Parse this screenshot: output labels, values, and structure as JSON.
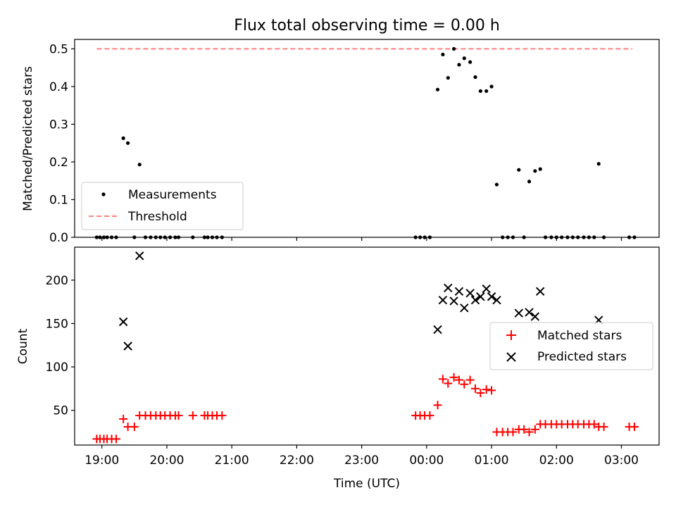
{
  "chart_data": [
    {
      "type": "scatter",
      "title": "Flux total observing time = 0.00 h",
      "ylabel": "Matched/Predicted stars",
      "xlabel": "",
      "xlim": [
        18.58,
        27.58
      ],
      "ylim": [
        0,
        0.525
      ],
      "yticks": [
        "0.0",
        "0.1",
        "0.2",
        "0.3",
        "0.4",
        "0.5"
      ],
      "legend": {
        "position": "lower-left",
        "entries": [
          "Measurements",
          "Threshold"
        ]
      },
      "colors": {
        "measurements": "#000000",
        "threshold": "#ff7f7f"
      },
      "threshold": {
        "name": "Threshold",
        "value": 0.5,
        "x_start": 18.92,
        "x_end": 27.17
      },
      "series": [
        {
          "name": "Measurements",
          "points": [
            [
              18.92,
              0
            ],
            [
              18.97,
              0
            ],
            [
              19.03,
              0
            ],
            [
              19.08,
              0
            ],
            [
              19.15,
              0
            ],
            [
              19.22,
              0
            ],
            [
              19.33,
              0.263
            ],
            [
              19.4,
              0.25
            ],
            [
              19.58,
              0.193
            ],
            [
              19.5,
              0
            ],
            [
              19.67,
              0
            ],
            [
              19.75,
              0
            ],
            [
              19.83,
              0
            ],
            [
              19.9,
              0
            ],
            [
              19.97,
              0
            ],
            [
              20.05,
              0
            ],
            [
              20.13,
              0
            ],
            [
              20.18,
              0
            ],
            [
              20.4,
              0
            ],
            [
              20.58,
              0
            ],
            [
              20.63,
              0
            ],
            [
              20.7,
              0
            ],
            [
              20.77,
              0
            ],
            [
              20.85,
              0
            ],
            [
              23.83,
              0
            ],
            [
              23.9,
              0
            ],
            [
              23.97,
              0
            ],
            [
              24.05,
              0
            ],
            [
              24.17,
              0.392
            ],
            [
              24.25,
              0.485
            ],
            [
              24.33,
              0.423
            ],
            [
              24.42,
              0.5
            ],
            [
              24.5,
              0.458
            ],
            [
              24.58,
              0.475
            ],
            [
              24.67,
              0.465
            ],
            [
              24.75,
              0.425
            ],
            [
              24.83,
              0.388
            ],
            [
              24.92,
              0.388
            ],
            [
              25.0,
              0.4
            ],
            [
              25.08,
              0.14
            ],
            [
              25.42,
              0.179
            ],
            [
              25.58,
              0.148
            ],
            [
              25.67,
              0.176
            ],
            [
              25.75,
              0.181
            ],
            [
              26.65,
              0.195
            ],
            [
              25.17,
              0
            ],
            [
              25.25,
              0
            ],
            [
              25.33,
              0
            ],
            [
              25.5,
              0
            ],
            [
              25.83,
              0
            ],
            [
              25.92,
              0
            ],
            [
              26.0,
              0
            ],
            [
              26.08,
              0
            ],
            [
              26.17,
              0
            ],
            [
              26.25,
              0
            ],
            [
              26.33,
              0
            ],
            [
              26.42,
              0
            ],
            [
              26.5,
              0
            ],
            [
              26.58,
              0
            ],
            [
              26.73,
              0
            ],
            [
              27.12,
              0
            ],
            [
              27.2,
              0
            ]
          ]
        }
      ]
    },
    {
      "type": "scatter",
      "title": "",
      "xlabel": "Time (UTC)",
      "ylabel": "Count",
      "xlim": [
        18.58,
        27.58
      ],
      "ylim": [
        10,
        238
      ],
      "yticks": [
        "50",
        "100",
        "150",
        "200"
      ],
      "xticks": [
        "19:00",
        "20:00",
        "21:00",
        "22:00",
        "23:00",
        "00:00",
        "01:00",
        "02:00",
        "03:00"
      ],
      "legend": {
        "position": "center-right",
        "entries": [
          "Matched stars",
          "Predicted stars"
        ]
      },
      "colors": {
        "matched": "#ff0000",
        "predicted": "#000000"
      },
      "series": [
        {
          "name": "Matched stars",
          "points": [
            [
              18.92,
              17
            ],
            [
              18.97,
              17
            ],
            [
              19.03,
              17
            ],
            [
              19.08,
              17
            ],
            [
              19.15,
              17
            ],
            [
              19.22,
              17
            ],
            [
              19.33,
              40
            ],
            [
              19.4,
              31
            ],
            [
              19.5,
              31
            ],
            [
              19.58,
              44
            ],
            [
              19.67,
              44
            ],
            [
              19.75,
              44
            ],
            [
              19.83,
              44
            ],
            [
              19.9,
              44
            ],
            [
              19.97,
              44
            ],
            [
              20.05,
              44
            ],
            [
              20.13,
              44
            ],
            [
              20.18,
              44
            ],
            [
              20.4,
              44
            ],
            [
              20.58,
              44
            ],
            [
              20.63,
              44
            ],
            [
              20.7,
              44
            ],
            [
              20.77,
              44
            ],
            [
              20.85,
              44
            ],
            [
              23.83,
              44
            ],
            [
              23.9,
              44
            ],
            [
              23.97,
              44
            ],
            [
              24.05,
              44
            ],
            [
              24.17,
              56
            ],
            [
              24.25,
              86
            ],
            [
              24.33,
              81
            ],
            [
              24.42,
              88
            ],
            [
              24.5,
              85
            ],
            [
              24.58,
              80
            ],
            [
              24.67,
              85
            ],
            [
              24.75,
              75
            ],
            [
              24.83,
              70
            ],
            [
              24.92,
              74
            ],
            [
              25.0,
              73
            ],
            [
              25.08,
              25
            ],
            [
              25.17,
              25
            ],
            [
              25.25,
              25
            ],
            [
              25.33,
              25
            ],
            [
              25.42,
              28
            ],
            [
              25.5,
              28
            ],
            [
              25.58,
              25
            ],
            [
              25.67,
              28
            ],
            [
              25.75,
              34
            ],
            [
              25.83,
              34
            ],
            [
              25.92,
              34
            ],
            [
              26.0,
              34
            ],
            [
              26.08,
              34
            ],
            [
              26.17,
              34
            ],
            [
              26.25,
              34
            ],
            [
              26.33,
              34
            ],
            [
              26.42,
              34
            ],
            [
              26.5,
              34
            ],
            [
              26.58,
              34
            ],
            [
              26.65,
              31
            ],
            [
              26.73,
              31
            ],
            [
              27.12,
              31
            ],
            [
              27.2,
              31
            ]
          ]
        },
        {
          "name": "Predicted stars",
          "points": [
            [
              19.33,
              152
            ],
            [
              19.4,
              124
            ],
            [
              19.58,
              228
            ],
            [
              24.17,
              143
            ],
            [
              24.25,
              177
            ],
            [
              24.33,
              191
            ],
            [
              24.42,
              176
            ],
            [
              24.5,
              187
            ],
            [
              24.58,
              168
            ],
            [
              24.67,
              185
            ],
            [
              24.75,
              177
            ],
            [
              24.83,
              181
            ],
            [
              24.92,
              190
            ],
            [
              25.0,
              181
            ],
            [
              25.08,
              177
            ],
            [
              25.42,
              162
            ],
            [
              25.58,
              163
            ],
            [
              25.67,
              158
            ],
            [
              25.75,
              187
            ],
            [
              26.65,
              154
            ]
          ]
        }
      ]
    }
  ]
}
